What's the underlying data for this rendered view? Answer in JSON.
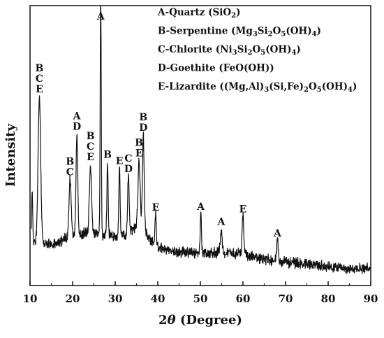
{
  "chart_data": {
    "type": "line",
    "title": "",
    "xlabel": "2θ (Degree)",
    "ylabel": "Intensity",
    "xlim": [
      10,
      90
    ],
    "xticks": [
      10,
      20,
      30,
      40,
      50,
      60,
      70,
      80,
      90
    ],
    "y_tick_labels_shown": false,
    "grid": false,
    "legend_position": "top-right",
    "legend": [
      {
        "key": "A",
        "text": "A-Quartz (SiO",
        "formula": [
          [
            "2",
            "sub"
          ],
          [
            ")",
            "n"
          ]
        ]
      },
      {
        "key": "B",
        "text": "B-Serpentine (Mg",
        "formula": [
          [
            "3",
            "sub"
          ],
          [
            "Si",
            "n"
          ],
          [
            "2",
            "sub"
          ],
          [
            "O",
            "n"
          ],
          [
            "5",
            "sub"
          ],
          [
            "(OH)",
            "n"
          ],
          [
            "4",
            "sub"
          ],
          [
            ")",
            "n"
          ]
        ]
      },
      {
        "key": "C",
        "text": "C-Chlorite (Ni",
        "formula": [
          [
            "3",
            "sub"
          ],
          [
            "Si",
            "n"
          ],
          [
            "2",
            "sub"
          ],
          [
            "O",
            "n"
          ],
          [
            "5",
            "sub"
          ],
          [
            "(OH)",
            "n"
          ],
          [
            "4",
            "sub"
          ],
          [
            ")",
            "n"
          ]
        ]
      },
      {
        "key": "D",
        "text": "D-Goethite (FeO(OH))",
        "formula": []
      },
      {
        "key": "E",
        "text": "E-Lizardite ((Mg,Al)",
        "formula": [
          [
            "3",
            "sub"
          ],
          [
            "(Si,Fe)",
            "n"
          ],
          [
            "2",
            "sub"
          ],
          [
            "O",
            "n"
          ],
          [
            "5",
            "sub"
          ],
          [
            "(OH)",
            "n"
          ],
          [
            "4",
            "sub"
          ],
          [
            ")",
            "n"
          ]
        ]
      }
    ],
    "background_relative": [
      [
        10.5,
        0.12
      ],
      [
        11,
        0.13
      ],
      [
        12,
        0.13
      ],
      [
        14,
        0.12
      ],
      [
        16,
        0.12
      ],
      [
        18,
        0.14
      ],
      [
        19.5,
        0.16
      ],
      [
        22,
        0.16
      ],
      [
        24,
        0.17
      ],
      [
        26,
        0.16
      ],
      [
        28,
        0.16
      ],
      [
        30,
        0.15
      ],
      [
        33,
        0.16
      ],
      [
        35,
        0.19
      ],
      [
        36.5,
        0.2
      ],
      [
        38,
        0.14
      ],
      [
        40,
        0.11
      ],
      [
        44,
        0.09
      ],
      [
        50,
        0.08
      ],
      [
        55,
        0.09
      ],
      [
        60,
        0.08
      ],
      [
        65,
        0.06
      ],
      [
        70,
        0.05
      ],
      [
        80,
        0.03
      ],
      [
        90,
        0.02
      ]
    ],
    "peaks_relative": [
      {
        "x": 10.5,
        "height": 0.22,
        "width": 0.12
      },
      {
        "x": 12.2,
        "height": 0.58,
        "width": 0.3
      },
      {
        "x": 19.4,
        "height": 0.22,
        "width": 0.25
      },
      {
        "x": 21.0,
        "height": 0.4,
        "width": 0.2
      },
      {
        "x": 24.2,
        "height": 0.27,
        "width": 0.25
      },
      {
        "x": 26.6,
        "height": 1.0,
        "width": 0.12
      },
      {
        "x": 28.2,
        "height": 0.29,
        "width": 0.14
      },
      {
        "x": 31.0,
        "height": 0.27,
        "width": 0.15
      },
      {
        "x": 33.1,
        "height": 0.23,
        "width": 0.18
      },
      {
        "x": 35.6,
        "height": 0.26,
        "width": 0.25
      },
      {
        "x": 36.6,
        "height": 0.36,
        "width": 0.2
      },
      {
        "x": 39.5,
        "height": 0.12,
        "width": 0.15
      },
      {
        "x": 50.1,
        "height": 0.16,
        "width": 0.15
      },
      {
        "x": 54.9,
        "height": 0.09,
        "width": 0.2
      },
      {
        "x": 60.0,
        "height": 0.15,
        "width": 0.2
      },
      {
        "x": 68.1,
        "height": 0.08,
        "width": 0.2
      }
    ],
    "peak_annotations": [
      {
        "x": 12.2,
        "labels": [
          "B",
          "C",
          "E"
        ]
      },
      {
        "x": 19.4,
        "labels": [
          "B",
          "C"
        ]
      },
      {
        "x": 21.0,
        "labels": [
          "A",
          "D"
        ]
      },
      {
        "x": 24.2,
        "labels": [
          "B",
          "C",
          "E"
        ]
      },
      {
        "x": 26.6,
        "labels": [
          "A"
        ]
      },
      {
        "x": 28.2,
        "labels": [
          "B"
        ]
      },
      {
        "x": 31.0,
        "labels": [
          "E"
        ]
      },
      {
        "x": 33.1,
        "labels": [
          "C",
          "D"
        ]
      },
      {
        "x": 35.6,
        "labels": [
          "B",
          "E"
        ]
      },
      {
        "x": 36.6,
        "labels": [
          "B",
          "D"
        ]
      },
      {
        "x": 39.5,
        "labels": [
          "E"
        ]
      },
      {
        "x": 50.1,
        "labels": [
          "A"
        ]
      },
      {
        "x": 54.9,
        "labels": [
          "A"
        ]
      },
      {
        "x": 60.0,
        "labels": [
          "E"
        ]
      },
      {
        "x": 68.1,
        "labels": [
          "A"
        ]
      }
    ]
  }
}
